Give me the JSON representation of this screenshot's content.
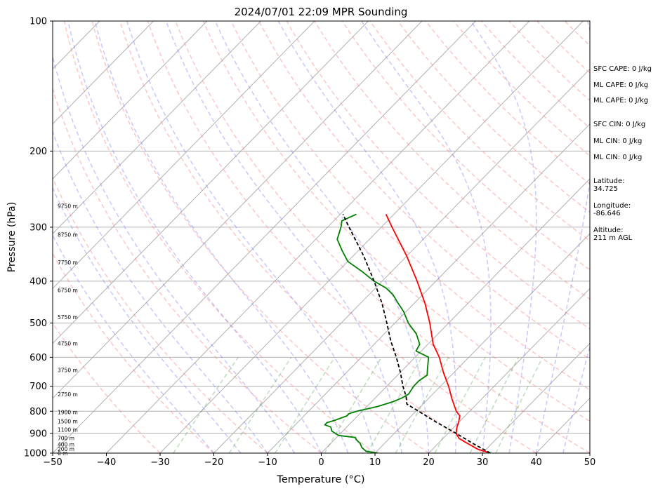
{
  "chart_data": {
    "type": "line",
    "title": "2024/07/01 22:09 MPR Sounding",
    "xlabel": "Temperature (°C)",
    "ylabel": "Pressure (hPa)",
    "xlim": [
      -50,
      50
    ],
    "ylim": [
      1000,
      100
    ],
    "y_scale": "log",
    "skew": "skew-T",
    "grid": true,
    "x_ticks": [
      "−50",
      "−40",
      "−30",
      "−20",
      "−10",
      "0",
      "10",
      "20",
      "30",
      "40",
      "50"
    ],
    "x_tick_values": [
      -50,
      -40,
      -30,
      -20,
      -10,
      0,
      10,
      20,
      30,
      40,
      50
    ],
    "y_ticks": [
      "100",
      "200",
      "300",
      "400",
      "500",
      "600",
      "700",
      "800",
      "900",
      "1000"
    ],
    "y_tick_values": [
      100,
      200,
      300,
      400,
      500,
      600,
      700,
      800,
      900,
      1000
    ],
    "series": [
      {
        "key": "temperature",
        "color": "#ff0000",
        "style": "solid",
        "points": [
          {
            "p": 1000,
            "t": 31.5
          },
          {
            "p": 980,
            "t": 28.5
          },
          {
            "p": 950,
            "t": 25.5
          },
          {
            "p": 925,
            "t": 23.0
          },
          {
            "p": 900,
            "t": 21.5
          },
          {
            "p": 870,
            "t": 20.5
          },
          {
            "p": 850,
            "t": 20.0
          },
          {
            "p": 820,
            "t": 19.0
          },
          {
            "p": 800,
            "t": 17.5
          },
          {
            "p": 750,
            "t": 14.5
          },
          {
            "p": 700,
            "t": 11.5
          },
          {
            "p": 650,
            "t": 8.0
          },
          {
            "p": 600,
            "t": 4.5
          },
          {
            "p": 560,
            "t": 1.0
          },
          {
            "p": 500,
            "t": -3.5
          },
          {
            "p": 450,
            "t": -8.0
          },
          {
            "p": 400,
            "t": -13.5
          },
          {
            "p": 350,
            "t": -20.0
          },
          {
            "p": 300,
            "t": -28.0
          },
          {
            "p": 280,
            "t": -31.5
          }
        ]
      },
      {
        "key": "dewpoint",
        "color": "#008000",
        "style": "solid",
        "points": [
          {
            "p": 1000,
            "t": 10.5
          },
          {
            "p": 990,
            "t": 8.0
          },
          {
            "p": 970,
            "t": 6.5
          },
          {
            "p": 950,
            "t": 5.5
          },
          {
            "p": 930,
            "t": 4.0
          },
          {
            "p": 920,
            "t": 3.5
          },
          {
            "p": 910,
            "t": 0.0
          },
          {
            "p": 890,
            "t": -2.0
          },
          {
            "p": 870,
            "t": -3.0
          },
          {
            "p": 860,
            "t": -4.5
          },
          {
            "p": 850,
            "t": -4.5
          },
          {
            "p": 840,
            "t": -3.5
          },
          {
            "p": 820,
            "t": -2.0
          },
          {
            "p": 810,
            "t": -2.0
          },
          {
            "p": 800,
            "t": -1.0
          },
          {
            "p": 780,
            "t": 2.0
          },
          {
            "p": 760,
            "t": 4.0
          },
          {
            "p": 745,
            "t": 5.0
          },
          {
            "p": 730,
            "t": 5.5
          },
          {
            "p": 700,
            "t": 5.0
          },
          {
            "p": 680,
            "t": 5.0
          },
          {
            "p": 660,
            "t": 5.5
          },
          {
            "p": 640,
            "t": 4.5
          },
          {
            "p": 600,
            "t": 2.5
          },
          {
            "p": 580,
            "t": -1.0
          },
          {
            "p": 560,
            "t": -1.5
          },
          {
            "p": 530,
            "t": -4.0
          },
          {
            "p": 500,
            "t": -7.5
          },
          {
            "p": 470,
            "t": -10.5
          },
          {
            "p": 450,
            "t": -13.0
          },
          {
            "p": 430,
            "t": -15.5
          },
          {
            "p": 415,
            "t": -18.0
          },
          {
            "p": 400,
            "t": -21.5
          },
          {
            "p": 380,
            "t": -25.5
          },
          {
            "p": 360,
            "t": -30.0
          },
          {
            "p": 340,
            "t": -33.0
          },
          {
            "p": 320,
            "t": -36.0
          },
          {
            "p": 300,
            "t": -37.5
          },
          {
            "p": 290,
            "t": -38.5
          },
          {
            "p": 280,
            "t": -37.0
          }
        ]
      },
      {
        "key": "parcel",
        "color": "#000000",
        "style": "dashed",
        "points": [
          {
            "p": 1000,
            "t": 31.5
          },
          {
            "p": 950,
            "t": 26.5
          },
          {
            "p": 900,
            "t": 21.5
          },
          {
            "p": 850,
            "t": 16.0
          },
          {
            "p": 800,
            "t": 10.5
          },
          {
            "p": 770,
            "t": 7.0
          },
          {
            "p": 740,
            "t": 5.5
          },
          {
            "p": 700,
            "t": 3.0
          },
          {
            "p": 650,
            "t": 0.0
          },
          {
            "p": 600,
            "t": -3.5
          },
          {
            "p": 550,
            "t": -7.5
          },
          {
            "p": 500,
            "t": -11.5
          },
          {
            "p": 450,
            "t": -16.0
          },
          {
            "p": 400,
            "t": -21.5
          },
          {
            "p": 350,
            "t": -28.0
          },
          {
            "p": 300,
            "t": -36.0
          },
          {
            "p": 280,
            "t": -39.5
          }
        ]
      }
    ],
    "height_labels": [
      {
        "p": 1000,
        "text": "0 m"
      },
      {
        "p": 977,
        "text": "200 m"
      },
      {
        "p": 955,
        "text": "400 m"
      },
      {
        "p": 923,
        "text": "700 m"
      },
      {
        "p": 882,
        "text": "1100 m"
      },
      {
        "p": 843,
        "text": "1500 m"
      },
      {
        "p": 803,
        "text": "1900 m"
      },
      {
        "p": 730,
        "text": "2750 m"
      },
      {
        "p": 642,
        "text": "3750 m"
      },
      {
        "p": 557,
        "text": "4750 m"
      },
      {
        "p": 484,
        "text": "5750 m"
      },
      {
        "p": 419,
        "text": "6750 m"
      },
      {
        "p": 362,
        "text": "7750 m"
      },
      {
        "p": 312,
        "text": "8750 m"
      },
      {
        "p": 268,
        "text": "9750 m"
      }
    ]
  },
  "info": {
    "sfc_cape": "SFC CAPE: 0 J/kg",
    "ml_cape_1": "ML CAPE: 0 J/kg",
    "ml_cape_2": "ML CAPE: 0 J/kg",
    "sfc_cin": "SFC CIN: 0 J/kg",
    "ml_cin_1": "ML CIN: 0 J/kg",
    "ml_cin_2": "ML CIN: 0 J/kg",
    "latitude": "Latitude:\n34.725",
    "longitude": "Longitude:\n-86.646",
    "altitude": "Altitude:\n211 m AGL"
  }
}
